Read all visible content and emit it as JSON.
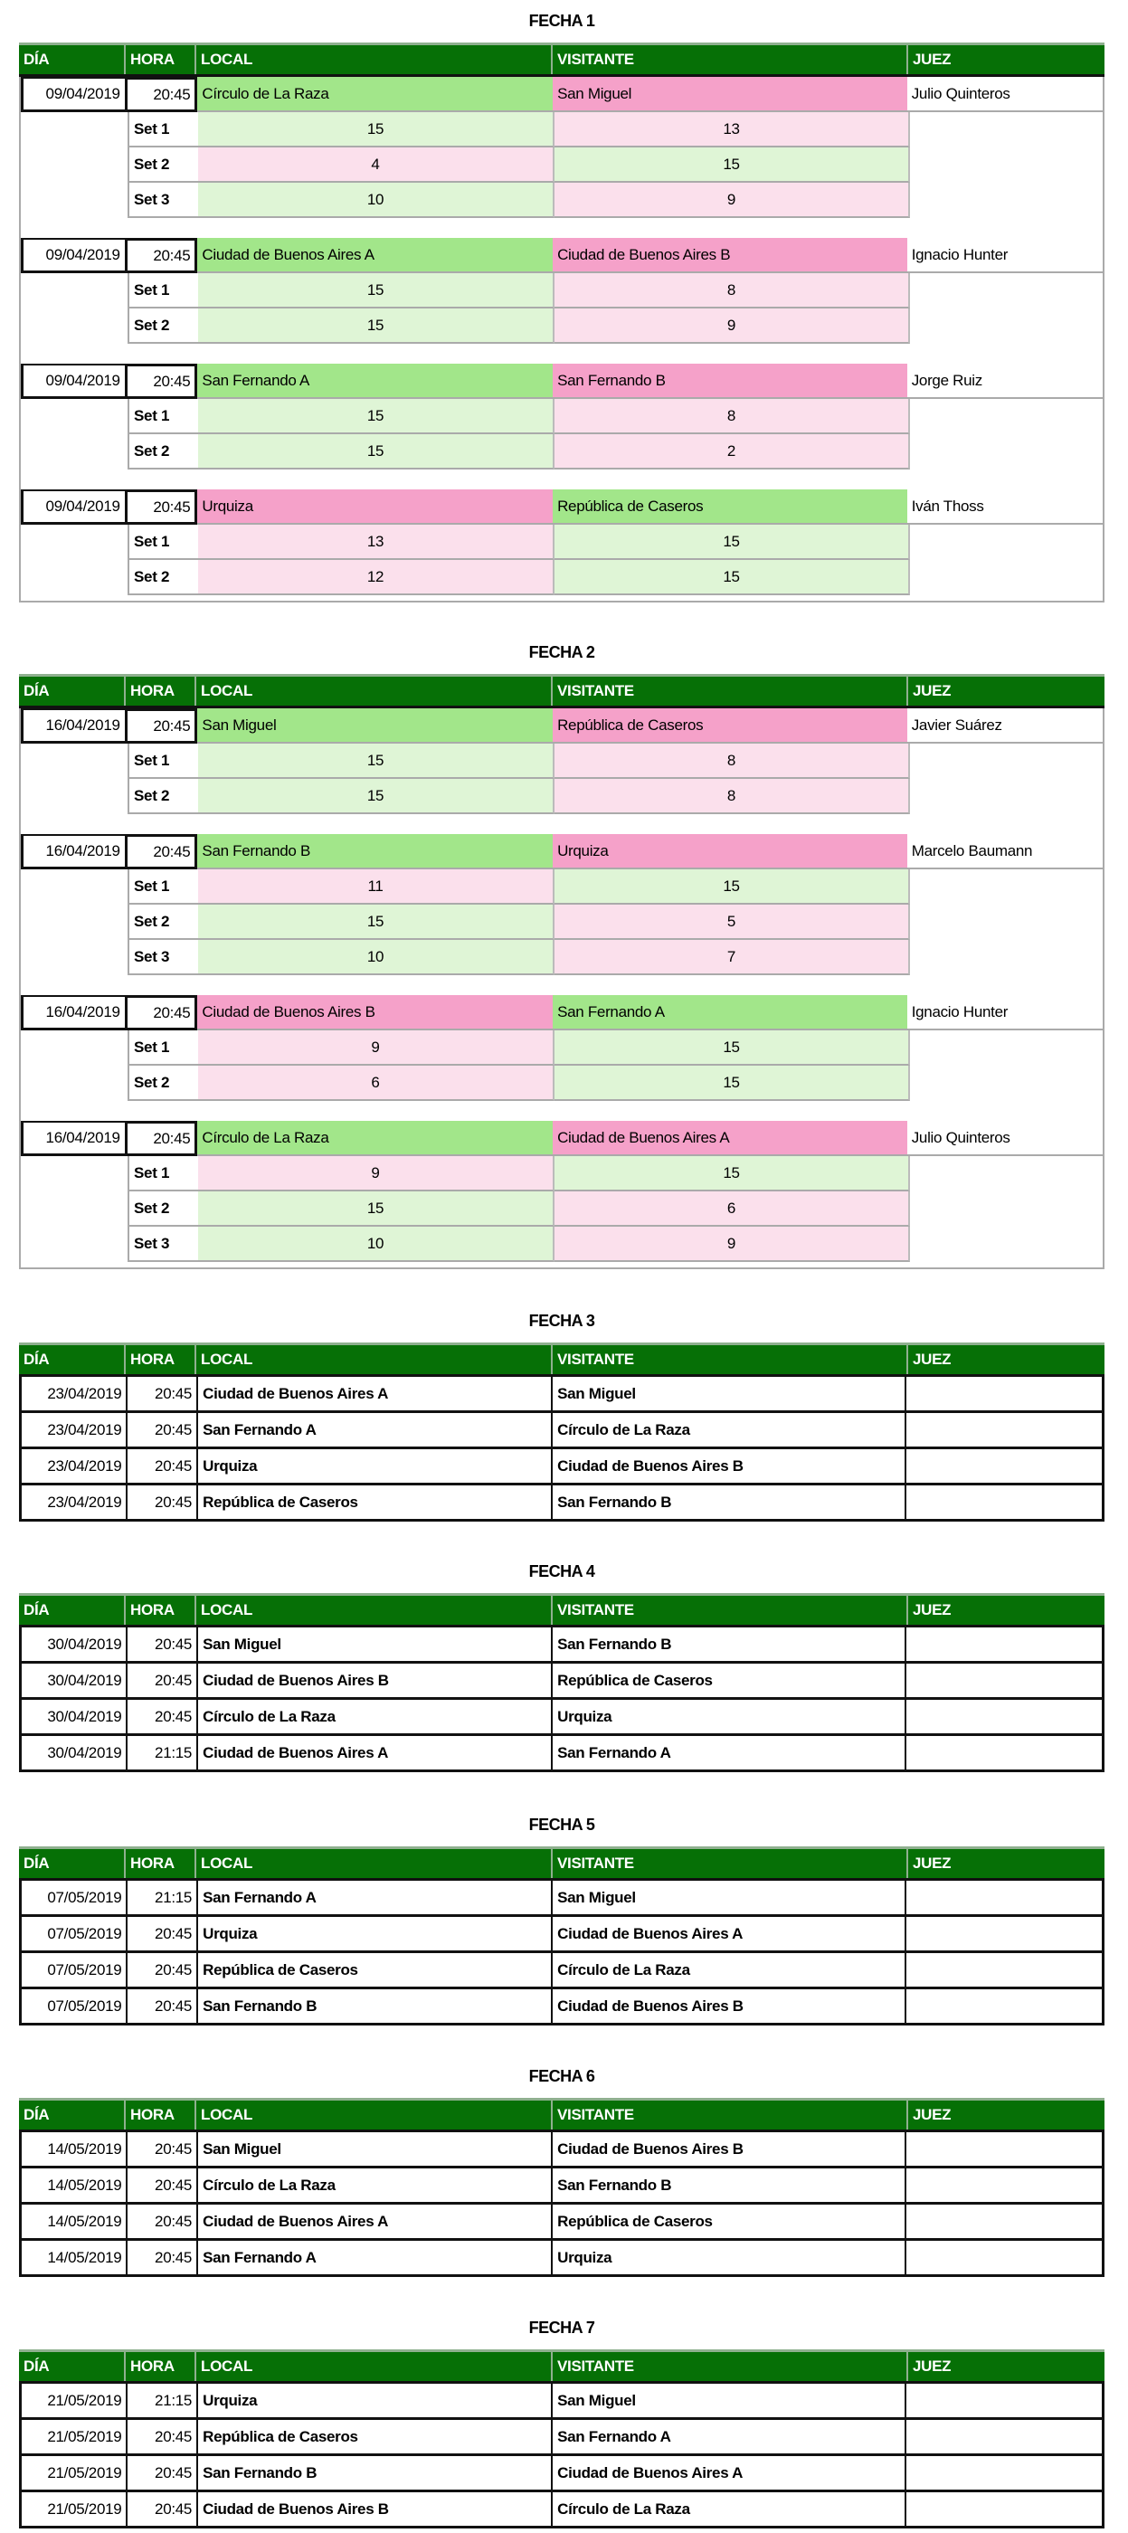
{
  "colors": {
    "header": "#067006",
    "win_team": "#a2e68a",
    "lose_team": "#f5a1c9",
    "win_set": "#dff5d6",
    "lose_set": "#fbe0ec"
  },
  "headers": [
    "DÍA",
    "HORA",
    "LOCAL",
    "VISITANTE",
    "JUEZ"
  ],
  "fechas": [
    {
      "title": "FECHA 1",
      "detailed": true,
      "matches": [
        {
          "date": "09/04/2019",
          "time": "20:45",
          "local": "Círculo de La Raza",
          "visitante": "San Miguel",
          "juez": "Julio Quinteros",
          "winner": "local",
          "sets": [
            {
              "label": "Set 1",
              "local": "15",
              "visitante": "13"
            },
            {
              "label": "Set 2",
              "local": "4",
              "visitante": "15"
            },
            {
              "label": "Set 3",
              "local": "10",
              "visitante": "9"
            }
          ]
        },
        {
          "date": "09/04/2019",
          "time": "20:45",
          "local": "Ciudad de Buenos Aires A",
          "visitante": "Ciudad de Buenos Aires B",
          "juez": "Ignacio Hunter",
          "winner": "local",
          "sets": [
            {
              "label": "Set 1",
              "local": "15",
              "visitante": "8"
            },
            {
              "label": "Set 2",
              "local": "15",
              "visitante": "9"
            }
          ]
        },
        {
          "date": "09/04/2019",
          "time": "20:45",
          "local": "San Fernando A",
          "visitante": "San Fernando B",
          "juez": "Jorge Ruiz",
          "winner": "local",
          "sets": [
            {
              "label": "Set 1",
              "local": "15",
              "visitante": "8"
            },
            {
              "label": "Set 2",
              "local": "15",
              "visitante": "2"
            }
          ]
        },
        {
          "date": "09/04/2019",
          "time": "20:45",
          "local": "Urquiza",
          "visitante": "República de Caseros",
          "juez": "Iván Thoss",
          "winner": "visitante",
          "sets": [
            {
              "label": "Set 1",
              "local": "13",
              "visitante": "15"
            },
            {
              "label": "Set 2",
              "local": "12",
              "visitante": "15"
            }
          ]
        }
      ]
    },
    {
      "title": "FECHA 2",
      "detailed": true,
      "matches": [
        {
          "date": "16/04/2019",
          "time": "20:45",
          "local": "San Miguel",
          "visitante": "República de Caseros",
          "juez": "Javier Suárez",
          "winner": "local",
          "sets": [
            {
              "label": "Set 1",
              "local": "15",
              "visitante": "8"
            },
            {
              "label": "Set 2",
              "local": "15",
              "visitante": "8"
            }
          ]
        },
        {
          "date": "16/04/2019",
          "time": "20:45",
          "local": "San Fernando B",
          "visitante": "Urquiza",
          "juez": "Marcelo Baumann",
          "winner": "local",
          "sets": [
            {
              "label": "Set 1",
              "local": "11",
              "visitante": "15"
            },
            {
              "label": "Set 2",
              "local": "15",
              "visitante": "5"
            },
            {
              "label": "Set 3",
              "local": "10",
              "visitante": "7"
            }
          ]
        },
        {
          "date": "16/04/2019",
          "time": "20:45",
          "local": "Ciudad de Buenos Aires B",
          "visitante": "San Fernando A",
          "juez": "Ignacio Hunter",
          "winner": "visitante",
          "sets": [
            {
              "label": "Set 1",
              "local": "9",
              "visitante": "15"
            },
            {
              "label": "Set 2",
              "local": "6",
              "visitante": "15"
            }
          ]
        },
        {
          "date": "16/04/2019",
          "time": "20:45",
          "local": "Círculo de La Raza",
          "visitante": "Ciudad de Buenos Aires A",
          "juez": "Julio Quinteros",
          "winner": "local",
          "sets": [
            {
              "label": "Set 1",
              "local": "9",
              "visitante": "15"
            },
            {
              "label": "Set 2",
              "local": "15",
              "visitante": "6"
            },
            {
              "label": "Set 3",
              "local": "10",
              "visitante": "9"
            }
          ]
        }
      ]
    },
    {
      "title": "FECHA 3",
      "detailed": false,
      "matches": [
        {
          "date": "23/04/2019",
          "time": "20:45",
          "local": "Ciudad de Buenos Aires A",
          "visitante": "San Miguel",
          "juez": ""
        },
        {
          "date": "23/04/2019",
          "time": "20:45",
          "local": "San Fernando A",
          "visitante": "Círculo de La Raza",
          "juez": ""
        },
        {
          "date": "23/04/2019",
          "time": "20:45",
          "local": "Urquiza",
          "visitante": "Ciudad de Buenos Aires B",
          "juez": ""
        },
        {
          "date": "23/04/2019",
          "time": "20:45",
          "local": "República de Caseros",
          "visitante": "San Fernando B",
          "juez": ""
        }
      ]
    },
    {
      "title": "FECHA 4",
      "detailed": false,
      "matches": [
        {
          "date": "30/04/2019",
          "time": "20:45",
          "local": "San Miguel",
          "visitante": "San Fernando B",
          "juez": ""
        },
        {
          "date": "30/04/2019",
          "time": "20:45",
          "local": "Ciudad de Buenos Aires B",
          "visitante": "República de Caseros",
          "juez": ""
        },
        {
          "date": "30/04/2019",
          "time": "20:45",
          "local": "Círculo de La Raza",
          "visitante": "Urquiza",
          "juez": ""
        },
        {
          "date": "30/04/2019",
          "time": "21:15",
          "local": "Ciudad de Buenos Aires A",
          "visitante": "San Fernando A",
          "juez": ""
        }
      ]
    },
    {
      "title": "FECHA 5",
      "detailed": false,
      "matches": [
        {
          "date": "07/05/2019",
          "time": "21:15",
          "local": "San Fernando A",
          "visitante": "San Miguel",
          "juez": ""
        },
        {
          "date": "07/05/2019",
          "time": "20:45",
          "local": "Urquiza",
          "visitante": "Ciudad de Buenos Aires A",
          "juez": ""
        },
        {
          "date": "07/05/2019",
          "time": "20:45",
          "local": "República de Caseros",
          "visitante": "Círculo de La Raza",
          "juez": ""
        },
        {
          "date": "07/05/2019",
          "time": "20:45",
          "local": "San Fernando B",
          "visitante": "Ciudad de Buenos Aires B",
          "juez": ""
        }
      ]
    },
    {
      "title": "FECHA 6",
      "detailed": false,
      "matches": [
        {
          "date": "14/05/2019",
          "time": "20:45",
          "local": "San Miguel",
          "visitante": "Ciudad de Buenos Aires B",
          "juez": ""
        },
        {
          "date": "14/05/2019",
          "time": "20:45",
          "local": "Círculo de La Raza",
          "visitante": "San Fernando B",
          "juez": ""
        },
        {
          "date": "14/05/2019",
          "time": "20:45",
          "local": "Ciudad de Buenos Aires A",
          "visitante": "República de Caseros",
          "juez": ""
        },
        {
          "date": "14/05/2019",
          "time": "20:45",
          "local": "San Fernando A",
          "visitante": "Urquiza",
          "juez": ""
        }
      ]
    },
    {
      "title": "FECHA 7",
      "detailed": false,
      "matches": [
        {
          "date": "21/05/2019",
          "time": "21:15",
          "local": "Urquiza",
          "visitante": "San Miguel",
          "juez": ""
        },
        {
          "date": "21/05/2019",
          "time": "20:45",
          "local": "República de Caseros",
          "visitante": "San Fernando A",
          "juez": ""
        },
        {
          "date": "21/05/2019",
          "time": "20:45",
          "local": "San Fernando B",
          "visitante": "Ciudad de Buenos Aires A",
          "juez": ""
        },
        {
          "date": "21/05/2019",
          "time": "20:45",
          "local": "Ciudad de Buenos Aires B",
          "visitante": "Círculo de La Raza",
          "juez": ""
        }
      ]
    }
  ]
}
